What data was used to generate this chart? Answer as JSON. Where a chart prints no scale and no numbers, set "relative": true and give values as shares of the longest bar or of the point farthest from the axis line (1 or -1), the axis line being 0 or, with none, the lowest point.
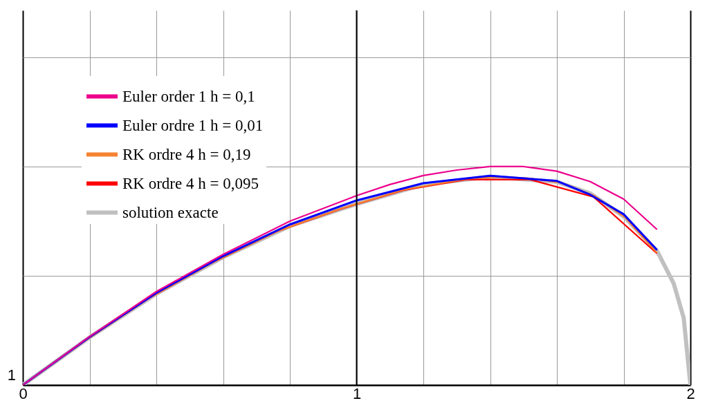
{
  "chart_data": {
    "type": "line",
    "relative": true,
    "xlim": [
      0,
      2
    ],
    "xticks": [
      0,
      {
        "value": 0.2,
        "label": null
      },
      {
        "value": 0.4,
        "label": null
      },
      {
        "value": 0.6,
        "label": null
      },
      {
        "value": 0.8,
        "label": null
      },
      1,
      {
        "value": 1.2,
        "label": null
      },
      {
        "value": 1.4,
        "label": null
      },
      {
        "value": 1.6,
        "label": null
      },
      {
        "value": 1.8,
        "label": null
      },
      2
    ],
    "grid": true,
    "legend": "top left",
    "line_style": "solid",
    "annotations": [
      "1"
    ],
    "ref_lines": [
      {
        "axis": "x",
        "value": 1,
        "label": null,
        "color": "#000000"
      }
    ],
    "series": [
      {
        "name": "Euler order 1 h = 0,1",
        "color": "#ec008c",
        "x": [
          0,
          0.2,
          0.4,
          0.6,
          0.8,
          1.0,
          1.1,
          1.2,
          1.3,
          1.4,
          1.5,
          1.6,
          1.7,
          1.8,
          1.9
        ],
        "values": [
          0,
          0.222,
          0.428,
          0.598,
          0.75,
          0.867,
          0.918,
          0.959,
          0.984,
          1,
          1,
          0.979,
          0.931,
          0.851,
          0.712
        ]
      },
      {
        "name": "Euler ordre 1 h = 0,01",
        "color": "#0000ff",
        "x": [
          0,
          0.2,
          0.4,
          0.6,
          0.8,
          1.0,
          1.2,
          1.4,
          1.6,
          1.7,
          1.8,
          1.9
        ],
        "values": [
          0,
          0.22,
          0.422,
          0.59,
          0.735,
          0.845,
          0.924,
          0.958,
          0.934,
          0.871,
          0.782,
          0.618
        ]
      },
      {
        "name": "RK ordre 4 h = 0,19",
        "color": "#f58231",
        "x": [
          0,
          0.19,
          0.38,
          0.57,
          0.76,
          0.95,
          1.14,
          1.33,
          1.425,
          1.52,
          1.615,
          1.71,
          1.805,
          1.9
        ],
        "values": [
          0,
          0.207,
          0.399,
          0.562,
          0.702,
          0.806,
          0.894,
          0.944,
          0.953,
          0.946,
          0.925,
          0.868,
          0.766,
          0.605
        ]
      },
      {
        "name": "RK ordre 4 h = 0,095",
        "color": "#ff0000",
        "x": [
          0,
          0.19,
          0.38,
          0.57,
          0.76,
          0.95,
          1.14,
          1.33,
          1.52,
          1.71,
          1.9
        ],
        "values": [
          0,
          0.207,
          0.399,
          0.562,
          0.702,
          0.805,
          0.892,
          0.941,
          0.94,
          0.861,
          0.602
        ]
      },
      {
        "name": "solution exacte",
        "color": "#c0c0c0",
        "x": [
          0,
          0.2,
          0.4,
          0.6,
          0.8,
          1.0,
          1.2,
          1.4,
          1.6,
          1.7,
          1.8,
          1.9,
          1.95,
          1.98,
          2.0
        ],
        "values": [
          0,
          0.218,
          0.418,
          0.585,
          0.728,
          0.829,
          0.918,
          0.953,
          0.93,
          0.877,
          0.772,
          0.614,
          0.465,
          0.307,
          0
        ]
      }
    ]
  }
}
